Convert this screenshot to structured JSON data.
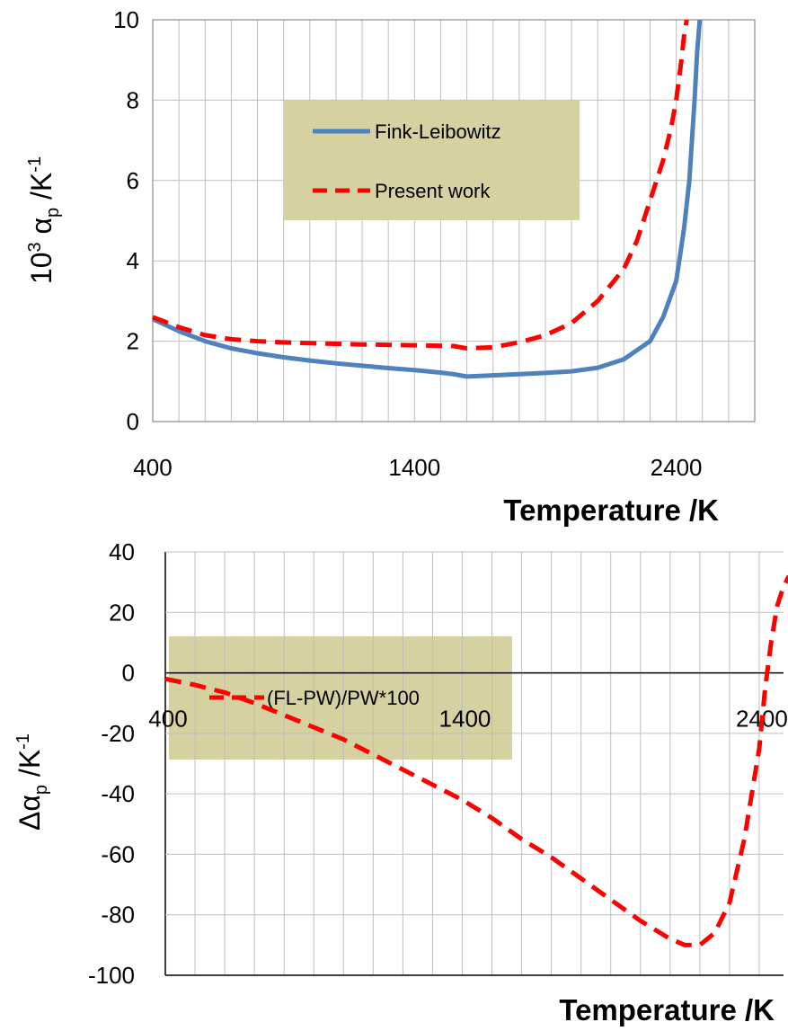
{
  "chart_data": [
    {
      "type": "line",
      "xlabel": "Temperature /K",
      "ylabel": {
        "prefix": "10",
        "prefix_sup": "3",
        "symbol": "α",
        "symbol_sub": "p",
        "unit": " /K",
        "unit_sup": "-1"
      },
      "xlim": [
        400,
        2700
      ],
      "ylim": [
        0,
        10
      ],
      "xticks": [
        "400",
        "1400",
        "2400"
      ],
      "yticks": [
        "0",
        "2",
        "4",
        "6",
        "8",
        "10"
      ],
      "grid": true,
      "legend_position": "upper-middle",
      "colors": {
        "legend_background": "#d5d1a0",
        "grid": "#bfbfbf"
      },
      "series": [
        {
          "name": "Fink-Leibowitz",
          "color": "#4f81bd",
          "style": "solid",
          "x": [
            400,
            500,
            600,
            700,
            800,
            900,
            1000,
            1100,
            1200,
            1300,
            1400,
            1500,
            1550,
            1600,
            1700,
            1800,
            1900,
            2000,
            2100,
            2200,
            2300,
            2350,
            2400,
            2430,
            2450,
            2470,
            2480,
            2490
          ],
          "y": [
            2.55,
            2.25,
            2.0,
            1.82,
            1.7,
            1.6,
            1.52,
            1.45,
            1.39,
            1.33,
            1.28,
            1.22,
            1.18,
            1.12,
            1.15,
            1.18,
            1.21,
            1.25,
            1.34,
            1.55,
            2.0,
            2.6,
            3.5,
            4.8,
            6.0,
            8.0,
            9.2,
            10.0
          ]
        },
        {
          "name": "Present work",
          "color": "#ff0000",
          "style": "dashed",
          "x": [
            400,
            500,
            600,
            700,
            800,
            900,
            1000,
            1200,
            1400,
            1550,
            1600,
            1700,
            1800,
            1900,
            2000,
            2100,
            2200,
            2250,
            2300,
            2350,
            2380,
            2400,
            2420,
            2430,
            2440
          ],
          "y": [
            2.6,
            2.35,
            2.15,
            2.05,
            2.0,
            1.97,
            1.95,
            1.92,
            1.9,
            1.88,
            1.82,
            1.85,
            1.97,
            2.15,
            2.45,
            3.0,
            3.8,
            4.5,
            5.5,
            6.5,
            7.3,
            8.0,
            9.0,
            9.6,
            10.0
          ]
        }
      ]
    },
    {
      "type": "line",
      "xlabel": "Temperature /K",
      "ylabel": {
        "prefix": "Δ",
        "prefix_sup": "",
        "symbol": "α",
        "symbol_sub": "p",
        "unit": " /K",
        "unit_sup": "-1"
      },
      "xlim": [
        400,
        2500
      ],
      "ylim": [
        -100,
        40
      ],
      "xticks": [
        "400",
        "1400",
        "2400"
      ],
      "yticks": [
        "-100",
        "-80",
        "-60",
        "-40",
        "-20",
        "0",
        "20",
        "40"
      ],
      "grid": true,
      "legend_position": "lower-left",
      "colors": {
        "legend_background": "#d5d1a0",
        "grid": "#bfbfbf"
      },
      "series": [
        {
          "name": "(FL-PW)/PW*100",
          "color": "#ff0000",
          "style": "dashed",
          "x": [
            400,
            500,
            600,
            700,
            800,
            900,
            1000,
            1100,
            1200,
            1300,
            1400,
            1500,
            1600,
            1700,
            1800,
            1900,
            2000,
            2100,
            2150,
            2200,
            2250,
            2300,
            2350,
            2400,
            2420,
            2440,
            2460,
            2480,
            2500
          ],
          "y": [
            -2,
            -4,
            -6.5,
            -10,
            -14,
            -18,
            -22,
            -27,
            -32,
            -37,
            -42,
            -48,
            -55,
            -61,
            -68,
            -75,
            -82,
            -88,
            -90,
            -90,
            -86,
            -76,
            -55,
            -25,
            -5,
            10,
            22,
            28,
            32
          ]
        }
      ]
    }
  ],
  "legends": [
    {
      "items": [
        "Fink-Leibowitz",
        "Present work"
      ]
    },
    {
      "items": [
        "(FL-PW)/PW*100"
      ]
    }
  ]
}
